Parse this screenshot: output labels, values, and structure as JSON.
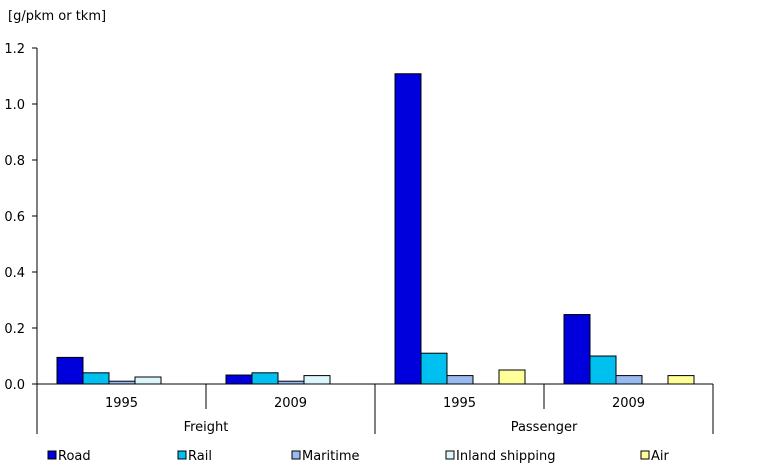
{
  "chart_data": {
    "type": "bar",
    "ylabel": "[g/pkm or tkm]",
    "ylim": [
      0,
      1.2
    ],
    "yticks": [
      "0.0",
      "0.2",
      "0.4",
      "0.6",
      "0.8",
      "1.0",
      "1.2"
    ],
    "groups": [
      {
        "label": "Freight",
        "categories": [
          "1995",
          "2009"
        ]
      },
      {
        "label": "Passenger",
        "categories": [
          "1995",
          "2009"
        ]
      }
    ],
    "categories": [
      "1995",
      "2009",
      "1995",
      "2009"
    ],
    "series": [
      {
        "name": "Road",
        "color": "#0000DD",
        "values": [
          0.095,
          0.032,
          1.108,
          0.248
        ]
      },
      {
        "name": "Rail",
        "color": "#00C0F0",
        "values": [
          0.04,
          0.04,
          0.11,
          0.1
        ]
      },
      {
        "name": "Maritime",
        "color": "#99BBF2",
        "values": [
          0.01,
          0.01,
          0.03,
          0.03
        ]
      },
      {
        "name": "Inland shipping",
        "color": "#DDF6FC",
        "values": [
          0.025,
          0.03,
          null,
          null
        ]
      },
      {
        "name": "Air",
        "color": "#FFFF99",
        "values": [
          null,
          null,
          0.05,
          0.03
        ]
      }
    ],
    "grid": false,
    "legend": "bottom"
  }
}
